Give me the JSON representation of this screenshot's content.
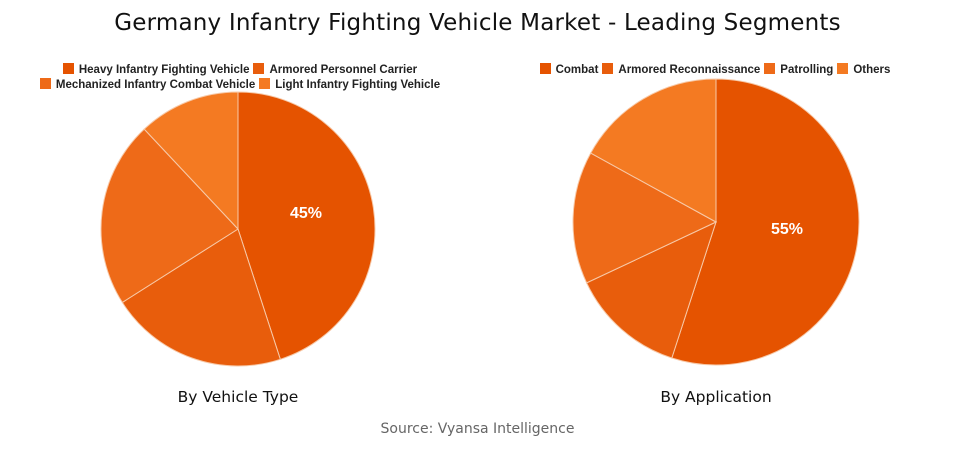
{
  "title": "Germany Infantry Fighting Vehicle Market - Leading Segments",
  "source": "Source: Vyansa Intelligence",
  "chart_data": [
    {
      "type": "pie",
      "title": "By Vehicle Type",
      "categories": [
        "Heavy Infantry Fighting Vehicle",
        "Armored Personnel Carrier",
        "Mechanized Infantry Combat Vehicle",
        "Light Infantry Fighting Vehicle"
      ],
      "values": [
        45,
        21,
        22,
        12
      ],
      "colors": [
        "#E55300",
        "#E85D0C",
        "#EE6A18",
        "#F47A22"
      ],
      "data_labels": [
        "45%"
      ],
      "legend": "top"
    },
    {
      "type": "pie",
      "title": "By Application",
      "categories": [
        "Combat",
        "Armored Reconnaissance",
        "Patrolling",
        "Others"
      ],
      "values": [
        55,
        13,
        15,
        17
      ],
      "colors": [
        "#E55300",
        "#E85D0C",
        "#EE6A18",
        "#F47A22"
      ],
      "data_labels": [
        "55%"
      ],
      "legend": "top"
    }
  ]
}
